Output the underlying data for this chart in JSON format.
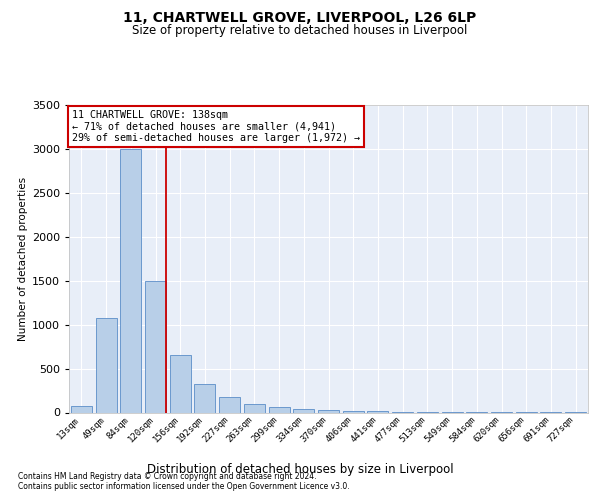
{
  "title1": "11, CHARTWELL GROVE, LIVERPOOL, L26 6LP",
  "title2": "Size of property relative to detached houses in Liverpool",
  "xlabel": "Distribution of detached houses by size in Liverpool",
  "ylabel": "Number of detached properties",
  "annotation_line1": "11 CHARTWELL GROVE: 138sqm",
  "annotation_line2": "← 71% of detached houses are smaller (4,941)",
  "annotation_line3": "29% of semi-detached houses are larger (1,972) →",
  "footnote1": "Contains HM Land Registry data © Crown copyright and database right 2024.",
  "footnote2": "Contains public sector information licensed under the Open Government Licence v3.0.",
  "categories": [
    "13sqm",
    "49sqm",
    "84sqm",
    "120sqm",
    "156sqm",
    "192sqm",
    "227sqm",
    "263sqm",
    "299sqm",
    "334sqm",
    "370sqm",
    "406sqm",
    "441sqm",
    "477sqm",
    "513sqm",
    "549sqm",
    "584sqm",
    "620sqm",
    "656sqm",
    "691sqm",
    "727sqm"
  ],
  "values": [
    70,
    1080,
    3000,
    1500,
    650,
    330,
    175,
    100,
    60,
    40,
    30,
    20,
    15,
    10,
    7,
    5,
    4,
    3,
    2,
    2,
    1
  ],
  "bar_color": "#b8cfe8",
  "bar_edge_color": "#5b8dc8",
  "vline_color": "#cc0000",
  "vline_index": 3,
  "annotation_box_edge_color": "#cc0000",
  "bg_color": "#ffffff",
  "plot_bg_color": "#e8eef8",
  "grid_color": "#ffffff",
  "ylim_max": 3500,
  "yticks": [
    0,
    500,
    1000,
    1500,
    2000,
    2500,
    3000,
    3500
  ]
}
